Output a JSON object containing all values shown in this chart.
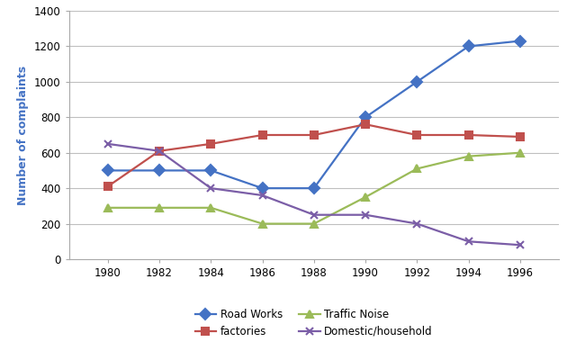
{
  "years": [
    1980,
    1982,
    1984,
    1986,
    1988,
    1990,
    1992,
    1994,
    1996
  ],
  "road_works": [
    500,
    500,
    500,
    400,
    400,
    800,
    1000,
    1200,
    1230
  ],
  "factories": [
    410,
    610,
    650,
    700,
    700,
    760,
    700,
    700,
    690
  ],
  "traffic_noise": [
    290,
    290,
    290,
    200,
    200,
    350,
    510,
    580,
    600
  ],
  "domestic_household": [
    650,
    610,
    400,
    360,
    250,
    250,
    200,
    100,
    80
  ],
  "series_colors": {
    "road_works": "#4472C4",
    "factories": "#C0504D",
    "traffic_noise": "#9BBB59",
    "domestic_household": "#7B5EA7"
  },
  "markers": {
    "road_works": "D",
    "factories": "s",
    "traffic_noise": "^",
    "domestic_household": "x"
  },
  "legend_labels": {
    "road_works": "Road Works",
    "factories": "factories",
    "traffic_noise": "Traffic Noise",
    "domestic_household": "Domestic/household"
  },
  "legend_order": [
    "road_works",
    "factories",
    "traffic_noise",
    "domestic_household"
  ],
  "ylabel": "Number of complaints",
  "ylabel_color": "#4472C4",
  "ylim": [
    0,
    1400
  ],
  "yticks": [
    0,
    200,
    400,
    600,
    800,
    1000,
    1200,
    1400
  ],
  "background_color": "#FFFFFF",
  "grid_color": "#C0C0C0",
  "linewidth": 1.6,
  "markersize": 6
}
